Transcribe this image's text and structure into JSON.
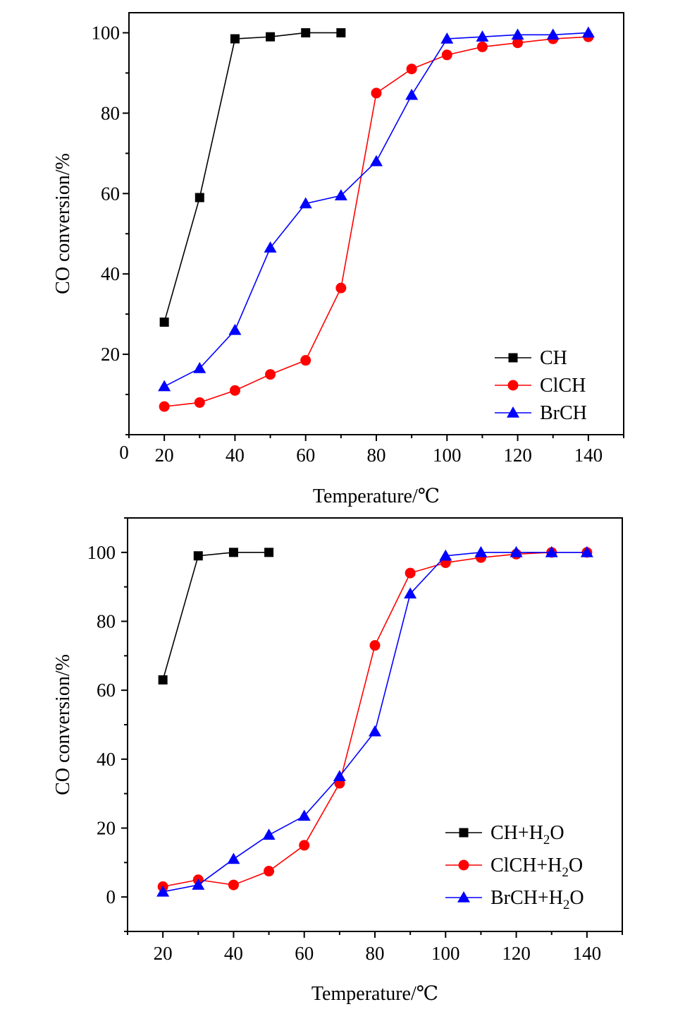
{
  "chart_data": [
    {
      "type": "line",
      "xlabel": "Temperature/℃",
      "ylabel": "CO conversion/%",
      "xlim": [
        10,
        150
      ],
      "ylim": [
        0,
        105
      ],
      "xticks": [
        20,
        40,
        60,
        80,
        100,
        120,
        140
      ],
      "yticks": [
        20,
        40,
        60,
        80,
        100
      ],
      "extra_origin_label": "0",
      "grid": false,
      "legend_position": "bottom-right",
      "series": [
        {
          "name": "CH",
          "color": "#000000",
          "marker": "square",
          "x": [
            20,
            30,
            40,
            50,
            60,
            70
          ],
          "y": [
            28,
            59,
            98.5,
            99,
            100,
            100
          ]
        },
        {
          "name": "ClCH",
          "color": "#ff0000",
          "marker": "circle",
          "x": [
            20,
            30,
            40,
            50,
            60,
            70,
            80,
            90,
            100,
            110,
            120,
            130,
            140
          ],
          "y": [
            7,
            8,
            11,
            15,
            18.5,
            36.5,
            85,
            91,
            94.5,
            96.5,
            97.5,
            98.5,
            99
          ]
        },
        {
          "name": "BrCH",
          "color": "#0000ff",
          "marker": "triangle",
          "x": [
            20,
            30,
            40,
            50,
            60,
            70,
            80,
            90,
            100,
            110,
            120,
            130,
            140
          ],
          "y": [
            12,
            16.5,
            26,
            46.5,
            57.5,
            59.5,
            68,
            84.5,
            98.5,
            99,
            99.5,
            99.5,
            100
          ]
        }
      ]
    },
    {
      "type": "line",
      "xlabel": "Temperature/℃",
      "ylabel": "CO conversion/%",
      "xlim": [
        10,
        150
      ],
      "ylim": [
        -10,
        110
      ],
      "xticks": [
        20,
        40,
        60,
        80,
        100,
        120,
        140
      ],
      "yticks": [
        0,
        20,
        40,
        60,
        80,
        100
      ],
      "grid": false,
      "legend_position": "bottom-right",
      "series": [
        {
          "name": "CH+H2O",
          "label_base": "CH+H",
          "label_sub": "2",
          "label_tail": "O",
          "color": "#000000",
          "marker": "square",
          "x": [
            20,
            30,
            40,
            50
          ],
          "y": [
            63,
            99,
            100,
            100
          ]
        },
        {
          "name": "ClCH+H2O",
          "label_base": "ClCH+H",
          "label_sub": "2",
          "label_tail": "O",
          "color": "#ff0000",
          "marker": "circle",
          "x": [
            20,
            30,
            40,
            50,
            60,
            70,
            80,
            90,
            100,
            110,
            120,
            130,
            140
          ],
          "y": [
            3,
            5,
            3.5,
            7.5,
            15,
            33,
            73,
            94,
            97,
            98.5,
            99.5,
            100,
            100
          ]
        },
        {
          "name": "BrCH+H2O",
          "label_base": "BrCH+H",
          "label_sub": "2",
          "label_tail": "O",
          "color": "#0000ff",
          "marker": "triangle",
          "x": [
            20,
            30,
            40,
            50,
            60,
            70,
            80,
            90,
            100,
            110,
            120,
            130,
            140
          ],
          "y": [
            1.5,
            3.5,
            11,
            18,
            23.5,
            35,
            48,
            88,
            99,
            100,
            100,
            100,
            100
          ]
        }
      ]
    }
  ]
}
